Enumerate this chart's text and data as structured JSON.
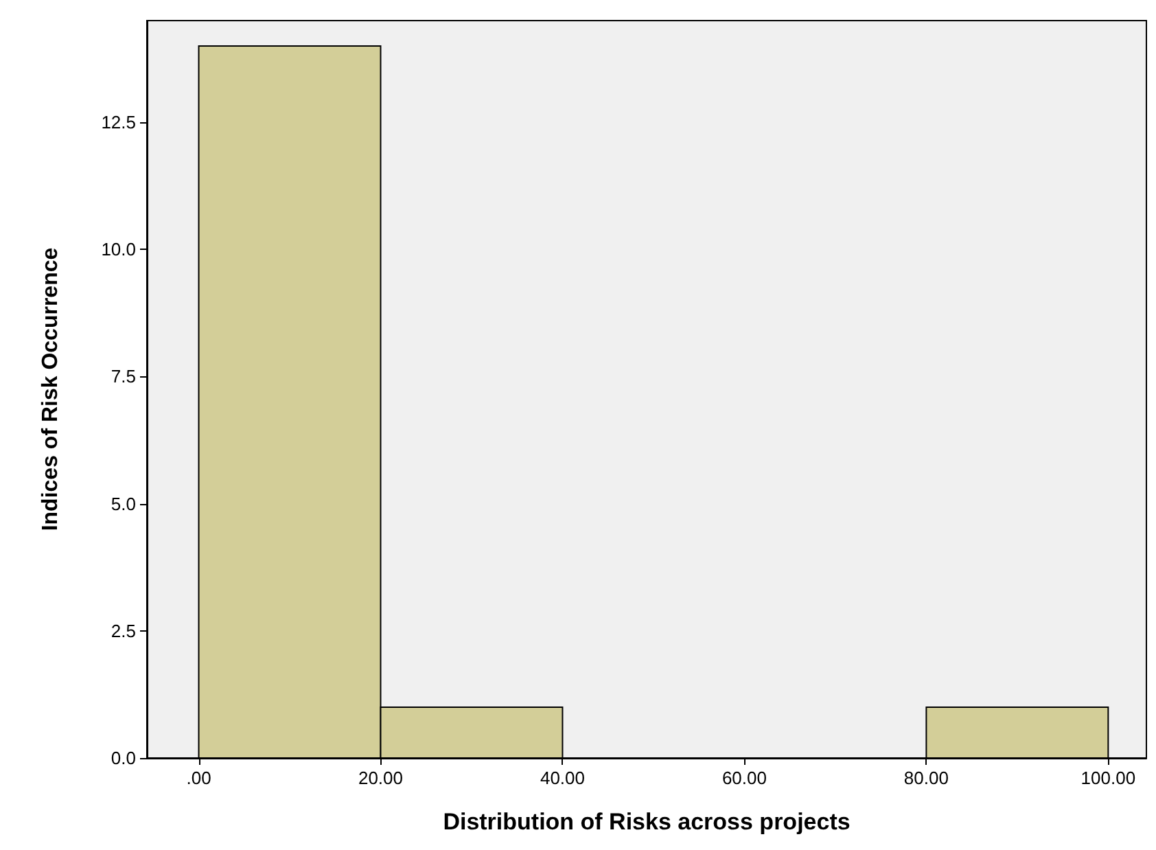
{
  "chart_data": {
    "type": "histogram",
    "xlabel": "Distribution of Risks across projects",
    "ylabel": "Indices of Risk Occurrence",
    "bins": [
      0,
      20,
      40,
      60,
      80,
      100
    ],
    "values": [
      14,
      1,
      0,
      0,
      1
    ],
    "color": "#d3ce98",
    "xlim": [
      -5.7,
      104.2
    ],
    "ylim": [
      0,
      14.5
    ],
    "xticks": [
      {
        "value": 0,
        "label": ".00"
      },
      {
        "value": 20,
        "label": "20.00"
      },
      {
        "value": 40,
        "label": "40.00"
      },
      {
        "value": 60,
        "label": "60.00"
      },
      {
        "value": 80,
        "label": "80.00"
      },
      {
        "value": 100,
        "label": "100.00"
      }
    ],
    "yticks": [
      {
        "value": 0,
        "label": "0.0"
      },
      2.5,
      {
        "value": 5,
        "label": "5.0"
      },
      7.5,
      {
        "value": 10,
        "label": "10.0"
      },
      12.5
    ]
  }
}
